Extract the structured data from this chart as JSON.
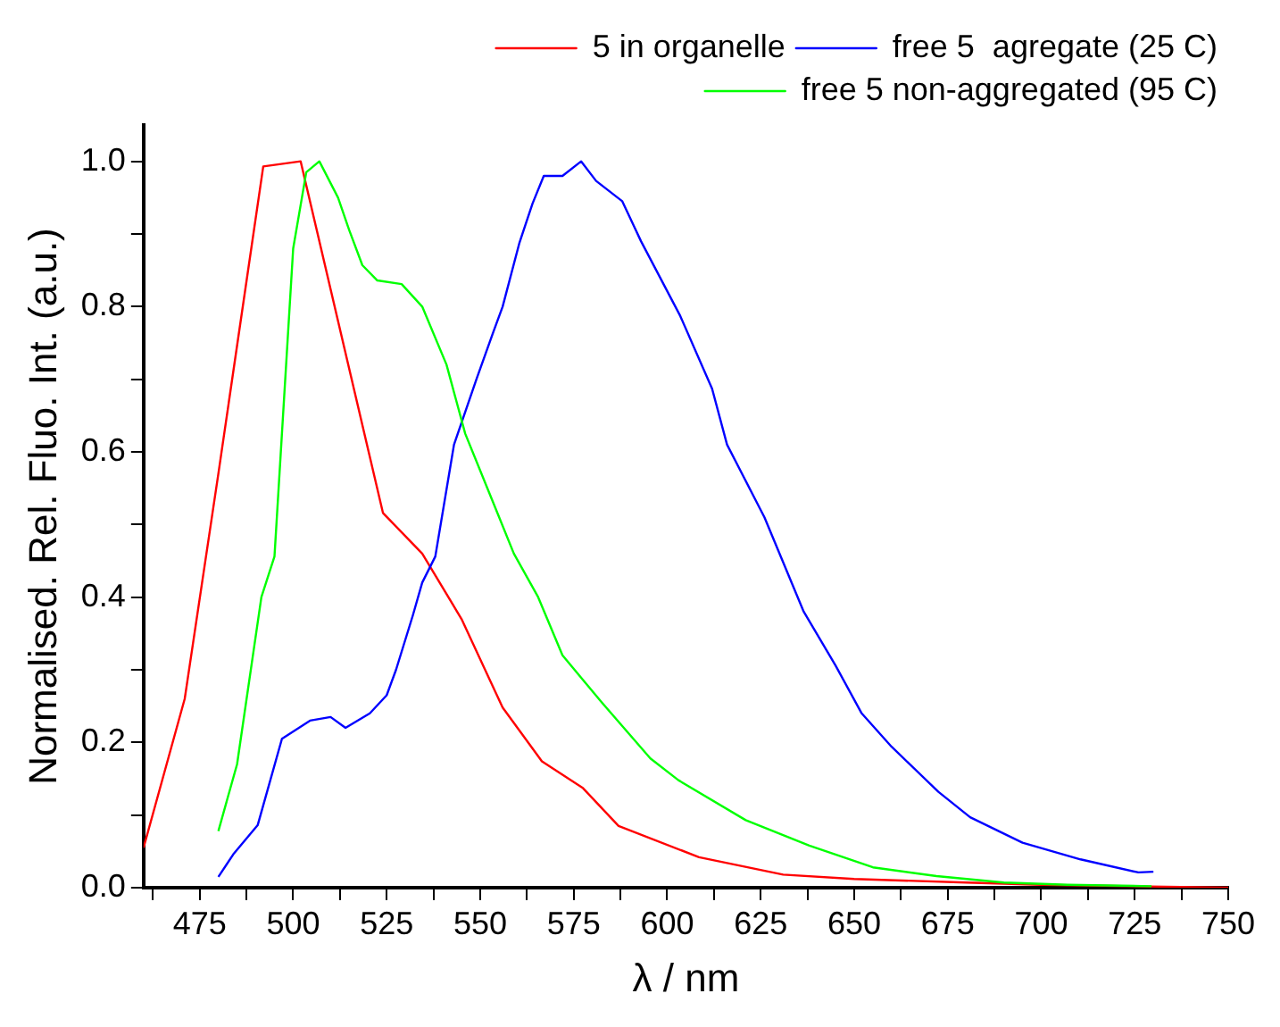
{
  "chart_data": {
    "type": "line",
    "xlabel": "λ / nm",
    "ylabel": "Normalised. Rel. Fluo. Int. (a.u.)",
    "xlim": [
      460,
      750
    ],
    "ylim": [
      0,
      1.05
    ],
    "xticks": [
      {
        "value": 462.5,
        "label": null
      },
      475,
      {
        "value": 487.5,
        "label": null
      },
      500,
      {
        "value": 512.5,
        "label": null
      },
      525,
      {
        "value": 537.5,
        "label": null
      },
      550,
      {
        "value": 562.5,
        "label": null
      },
      575,
      {
        "value": 587.5,
        "label": null
      },
      600,
      {
        "value": 612.5,
        "label": null
      },
      625,
      {
        "value": 637.5,
        "label": null
      },
      650,
      {
        "value": 662.5,
        "label": null
      },
      675,
      {
        "value": 687.5,
        "label": null
      },
      700,
      {
        "value": 712.5,
        "label": null
      },
      725,
      {
        "value": 737.5,
        "label": null
      },
      750
    ],
    "yticks": [
      {
        "value": 0,
        "label": "0.0"
      },
      {
        "value": 0.1,
        "label": null
      },
      {
        "value": 0.2,
        "label": "0.2"
      },
      {
        "value": 0.3,
        "label": null
      },
      {
        "value": 0.4,
        "label": "0.4"
      },
      {
        "value": 0.5,
        "label": null
      },
      {
        "value": 0.6,
        "label": "0.6"
      },
      {
        "value": 0.7,
        "label": null
      },
      {
        "value": 0.8,
        "label": "0.8"
      },
      {
        "value": 0.9,
        "label": null
      },
      {
        "value": 1,
        "label": "1.0"
      }
    ],
    "grid": false,
    "legend": "top right",
    "marker": "none",
    "line_style": "solid",
    "series": [
      {
        "name": "5 in organelle",
        "color": "#ff0000",
        "x": [
          460,
          471,
          480,
          492,
          502,
          524,
          534.5,
          545,
          556,
          566.5,
          577.5,
          587,
          608.5,
          631,
          650,
          680,
          700,
          750
        ],
        "values": [
          0.055,
          0.26,
          0.57,
          0.993,
          1.0,
          0.516,
          0.46,
          0.37,
          0.248,
          0.174,
          0.137,
          0.085,
          0.042,
          0.018,
          0.012,
          0.007,
          0.004,
          0.0
        ]
      },
      {
        "name": "free 5  agregate (25 C)",
        "color": "#0000ff",
        "x": [
          480,
          484,
          490.5,
          497,
          504.5,
          510,
          514,
          520.5,
          525,
          527.5,
          532,
          534.5,
          538,
          543,
          549,
          553.5,
          556,
          560.5,
          564,
          567,
          572,
          577,
          581,
          588,
          593,
          603.5,
          612,
          616,
          626,
          636.5,
          645,
          652,
          660,
          672.5,
          681,
          695,
          710.5,
          726,
          730
        ],
        "values": [
          0.015,
          0.046,
          0.086,
          0.205,
          0.23,
          0.235,
          0.22,
          0.24,
          0.265,
          0.3,
          0.375,
          0.42,
          0.456,
          0.61,
          0.7,
          0.765,
          0.8,
          0.888,
          0.942,
          0.98,
          0.98,
          1.0,
          0.973,
          0.945,
          0.89,
          0.787,
          0.687,
          0.61,
          0.51,
          0.38,
          0.306,
          0.24,
          0.194,
          0.132,
          0.097,
          0.062,
          0.039,
          0.021,
          0.022
        ]
      },
      {
        "name": "free 5 non-aggregated (95 C)",
        "color": "#00ff00",
        "x": [
          480,
          485,
          491.5,
          495,
          500,
          503.5,
          507,
          512,
          515,
          518.5,
          522.5,
          529,
          534.5,
          541,
          546,
          553.5,
          559,
          565.5,
          572,
          582.5,
          595.5,
          603,
          621,
          638,
          655,
          672,
          690,
          707,
          729.5
        ],
        "values": [
          0.078,
          0.17,
          0.4,
          0.456,
          0.88,
          0.985,
          1.0,
          0.95,
          0.905,
          0.857,
          0.836,
          0.831,
          0.8,
          0.72,
          0.625,
          0.53,
          0.46,
          0.4,
          0.32,
          0.255,
          0.178,
          0.148,
          0.093,
          0.058,
          0.028,
          0.016,
          0.007,
          0.004,
          0.002
        ]
      }
    ]
  }
}
